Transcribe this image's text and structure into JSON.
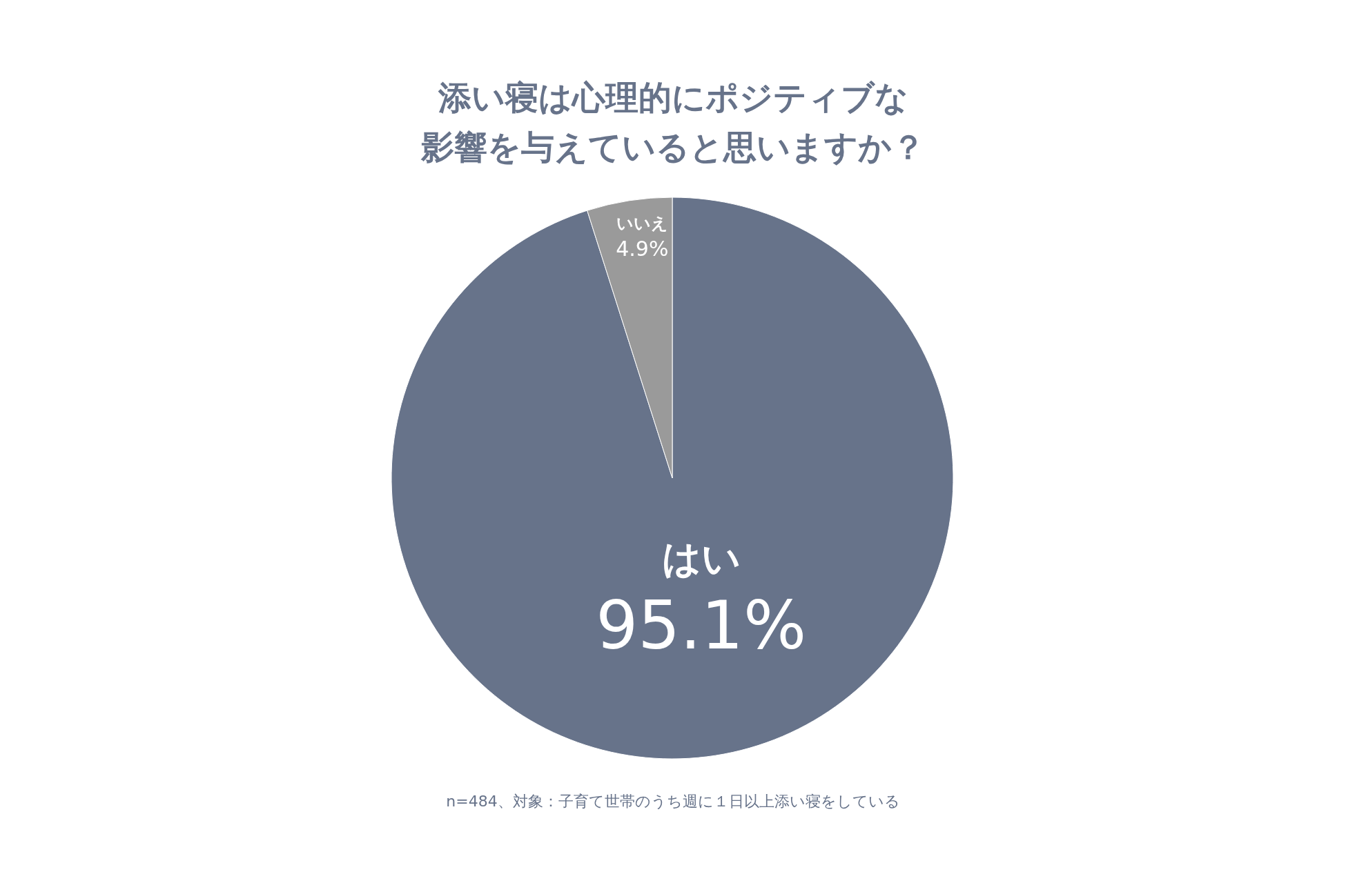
{
  "chart_data": {
    "type": "pie",
    "title": "添い寝は心理的にポジティブな影響を与えていると思いますか？",
    "categories": [
      "はい",
      "いいえ"
    ],
    "values": [
      95.1,
      4.9
    ],
    "colors": [
      "#67738a",
      "#9a9a9a"
    ],
    "value_labels": [
      "95.1%",
      "4.9%"
    ],
    "legend": false,
    "annotations": [
      "n=484、対象：子育て世帯のうち週に１日以上添い寝をしている"
    ]
  }
}
